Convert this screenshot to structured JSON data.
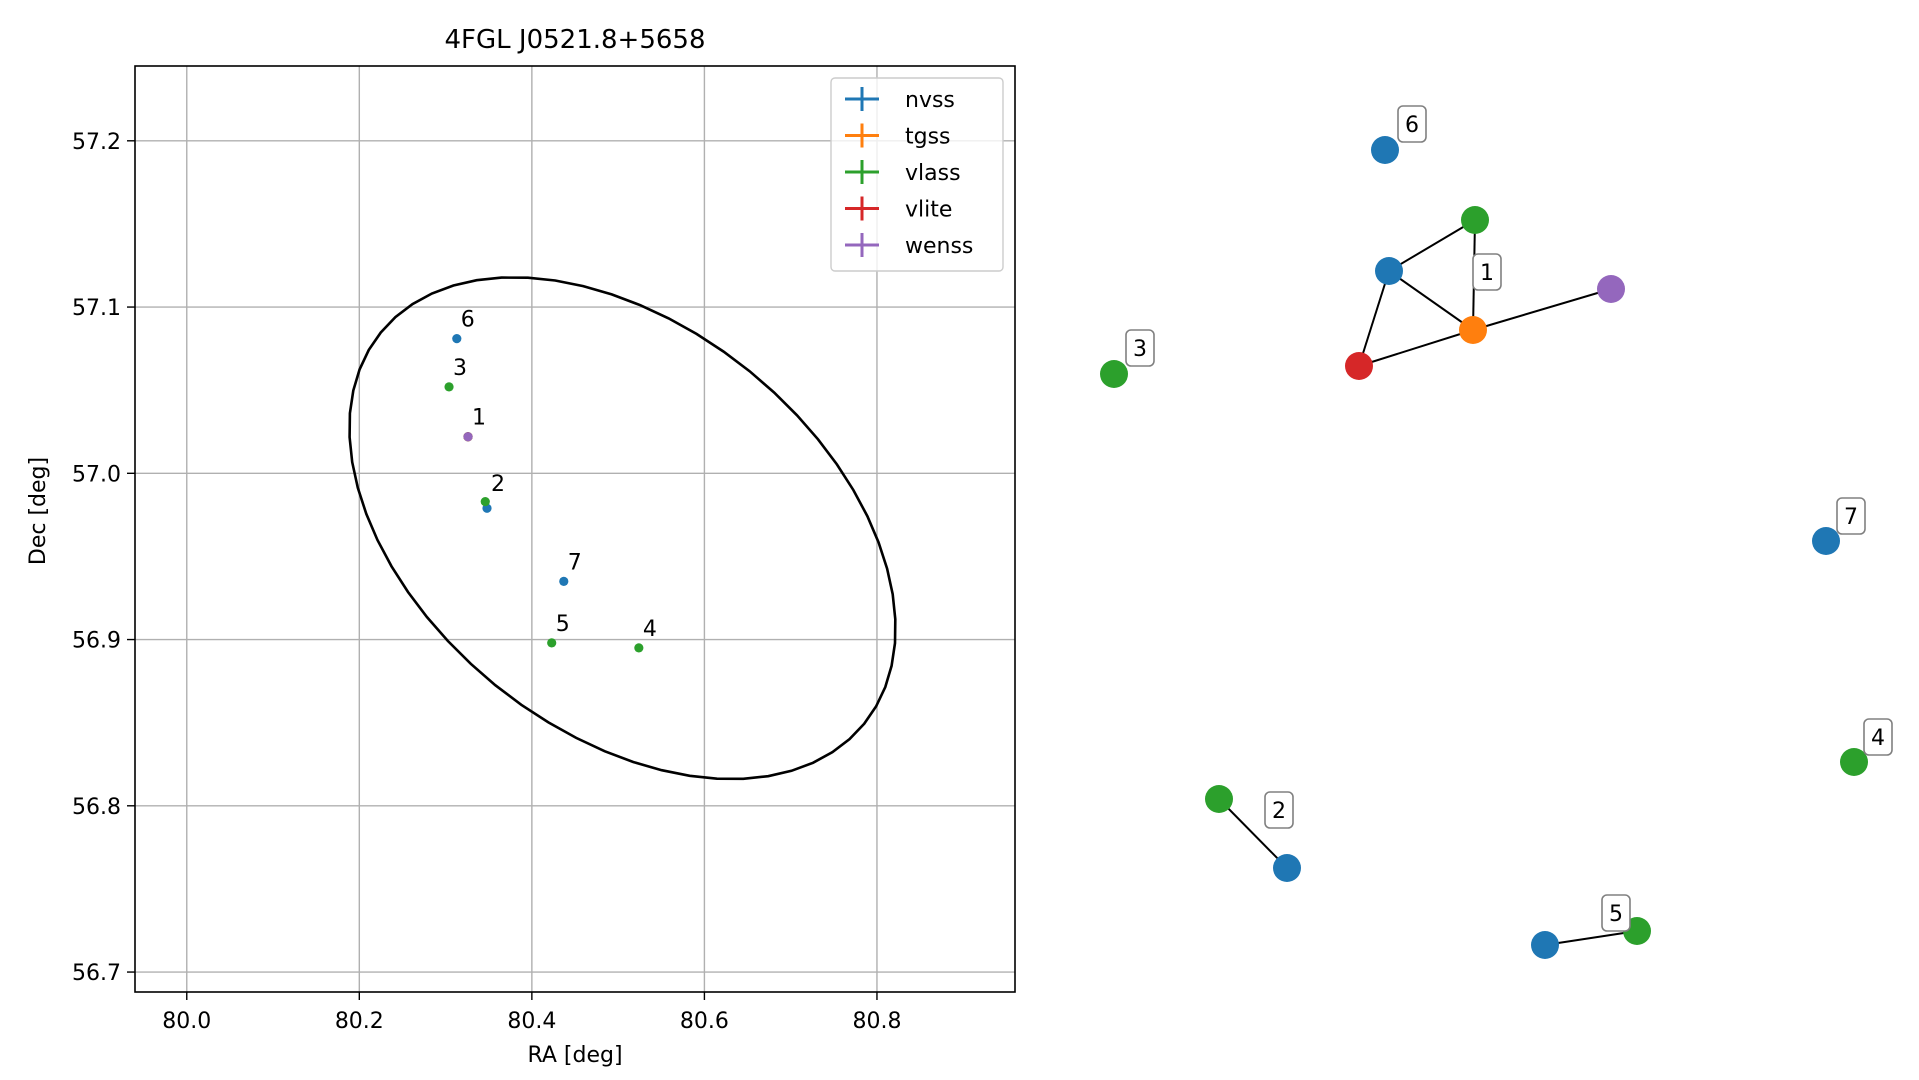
{
  "chart_data": [
    {
      "type": "scatter",
      "title": "4FGL J0521.8+5658",
      "xlabel": "RA [deg]",
      "ylabel": "Dec [deg]",
      "xlim": [
        79.94,
        80.96
      ],
      "ylim": [
        56.688,
        57.245
      ],
      "grid": true,
      "legend_position": "top-right",
      "xticks": [
        "80.0",
        "80.2",
        "80.4",
        "80.6",
        "80.8"
      ],
      "xtick_values": [
        80.0,
        80.2,
        80.4,
        80.6,
        80.8
      ],
      "yticks": [
        "56.7",
        "56.8",
        "56.9",
        "57.0",
        "57.1",
        "57.2"
      ],
      "ytick_values": [
        56.7,
        56.8,
        56.9,
        57.0,
        57.1,
        57.2
      ],
      "series": [
        {
          "name": "nvss",
          "color": "#1f77b4",
          "points": [
            {
              "x": 80.313,
              "y": 57.081
            },
            {
              "x": 80.348,
              "y": 56.979
            },
            {
              "x": 80.437,
              "y": 56.935
            },
            {
              "x": 80.326,
              "y": 57.022
            }
          ]
        },
        {
          "name": "tgss",
          "color": "#ff7f0e",
          "points": [
            {
              "x": 80.326,
              "y": 57.022
            }
          ]
        },
        {
          "name": "vlass",
          "color": "#2ca02c",
          "points": [
            {
              "x": 80.304,
              "y": 57.052
            },
            {
              "x": 80.346,
              "y": 56.983
            },
            {
              "x": 80.423,
              "y": 56.898
            },
            {
              "x": 80.524,
              "y": 56.895
            },
            {
              "x": 80.326,
              "y": 57.022
            }
          ]
        },
        {
          "name": "vlite",
          "color": "#d62728",
          "points": [
            {
              "x": 80.326,
              "y": 57.022
            }
          ]
        },
        {
          "name": "wenss",
          "color": "#9467bd",
          "points": [
            {
              "x": 80.326,
              "y": 57.022
            }
          ]
        }
      ],
      "annotations": [
        {
          "text": "6",
          "x": 80.313,
          "y": 57.081
        },
        {
          "text": "3",
          "x": 80.304,
          "y": 57.052
        },
        {
          "text": "1",
          "x": 80.326,
          "y": 57.022
        },
        {
          "text": "2",
          "x": 80.348,
          "y": 56.982
        },
        {
          "text": "7",
          "x": 80.437,
          "y": 56.935
        },
        {
          "text": "5",
          "x": 80.423,
          "y": 56.898
        },
        {
          "text": "4",
          "x": 80.524,
          "y": 56.895
        }
      ],
      "ellipse": {
        "center": [
          80.505,
          56.967
        ],
        "color": "#000000"
      }
    },
    {
      "type": "network",
      "nodes": [
        {
          "id": "n6",
          "color": "#1f77b4"
        },
        {
          "id": "g1a",
          "color": "#2ca02c"
        },
        {
          "id": "b1",
          "color": "#1f77b4"
        },
        {
          "id": "p1",
          "color": "#9467bd"
        },
        {
          "id": "o1",
          "color": "#ff7f0e"
        },
        {
          "id": "r1",
          "color": "#d62728"
        },
        {
          "id": "g3",
          "color": "#2ca02c"
        },
        {
          "id": "b7",
          "color": "#1f77b4"
        },
        {
          "id": "g4",
          "color": "#2ca02c"
        },
        {
          "id": "g2",
          "color": "#2ca02c"
        },
        {
          "id": "b2",
          "color": "#1f77b4"
        },
        {
          "id": "b5",
          "color": "#1f77b4"
        },
        {
          "id": "g5",
          "color": "#2ca02c"
        }
      ],
      "edges": [
        [
          "b1",
          "g1a"
        ],
        [
          "b1",
          "o1"
        ],
        [
          "b1",
          "r1"
        ],
        [
          "g1a",
          "o1"
        ],
        [
          "r1",
          "o1"
        ],
        [
          "o1",
          "p1"
        ],
        [
          "g2",
          "b2"
        ],
        [
          "b5",
          "g5"
        ]
      ],
      "group_labels": [
        "6",
        "1",
        "3",
        "7",
        "4",
        "2",
        "5"
      ]
    }
  ]
}
